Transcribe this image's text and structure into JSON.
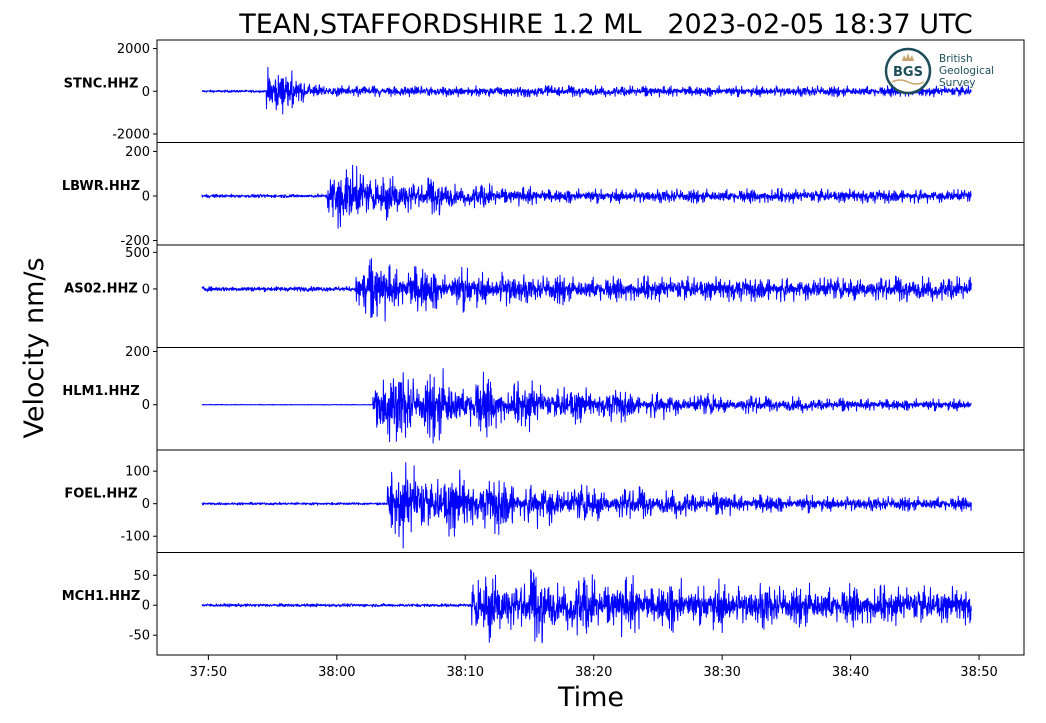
{
  "chart_data": {
    "type": "line",
    "title": "TEAN,STAFFORDSHIRE 1.2 ML   2023-02-05 18:37 UTC",
    "xlabel": "Time",
    "ylabel": "Velocity nm/s",
    "x_ticks": [
      "37:50",
      "38:00",
      "38:10",
      "38:20",
      "38:30",
      "38:40",
      "38:50"
    ],
    "x_tick_seconds": [
      50,
      60,
      70,
      80,
      90,
      100,
      110
    ],
    "xlim_seconds": [
      46,
      113.5
    ],
    "trace_seconds": [
      49.5,
      109.4
    ],
    "line_color": "#0000ff",
    "logo": {
      "letters": "BGS",
      "lines": [
        "British",
        "Geological",
        "Survey"
      ]
    },
    "traces": [
      {
        "name": "STNC.HHZ",
        "ylim": [
          -2400,
          2400
        ],
        "yticks": [
          2000,
          0,
          -2000
        ],
        "ytick_labels": [
          "2000",
          "0",
          "-2000"
        ],
        "noise": 90,
        "onset": 54.5,
        "peak": 2200,
        "decay": 2.2,
        "coda": 180
      },
      {
        "name": "LBWR.HHZ",
        "ylim": [
          -220,
          240
        ],
        "yticks": [
          200,
          0,
          -200
        ],
        "ytick_labels": [
          "200",
          "0",
          "-200"
        ],
        "noise": 12,
        "onset": 59.2,
        "peak": 200,
        "decay": 9,
        "coda": 22
      },
      {
        "name": "AS02.HHZ",
        "ylim": [
          -800,
          600
        ],
        "yticks": [
          500,
          0
        ],
        "ytick_labels": [
          "500",
          "0"
        ],
        "noise": 50,
        "onset": 61.5,
        "peak": 480,
        "decay": 16,
        "coda": 130
      },
      {
        "name": "HLM1.HHZ",
        "ylim": [
          -170,
          215
        ],
        "yticks": [
          200,
          0
        ],
        "ytick_labels": [
          "200",
          "0"
        ],
        "noise": 2,
        "onset": 62.8,
        "peak": 200,
        "decay": 18,
        "coda": 22
      },
      {
        "name": "FOEL.HHZ",
        "ylim": [
          -150,
          165
        ],
        "yticks": [
          100,
          0,
          -100
        ],
        "ytick_labels": [
          "100",
          "0",
          "-100"
        ],
        "noise": 6,
        "onset": 63.9,
        "peak": 150,
        "decay": 18,
        "coda": 18
      },
      {
        "name": "MCH1.HHZ",
        "ylim": [
          -83,
          88
        ],
        "yticks": [
          50,
          0,
          -50
        ],
        "ytick_labels": [
          "50",
          "0",
          "-50"
        ],
        "noise": 4,
        "onset": 70.5,
        "peak": 70,
        "decay": 40,
        "coda": 30
      }
    ]
  }
}
